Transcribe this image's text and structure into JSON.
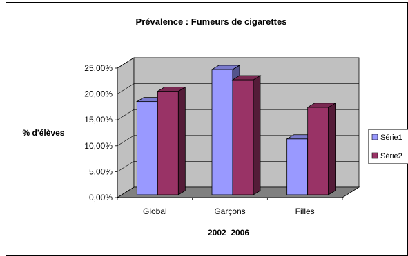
{
  "chart_data": {
    "type": "bar",
    "title": "Prévalence : Fumeurs de cigarettes",
    "xlabel": "2002  2006",
    "ylabel": "% d'élèves",
    "categories": [
      "Global",
      "Garçons",
      "Filles"
    ],
    "y_ticks": [
      "0,00%",
      "5,00%",
      "10,00%",
      "15,00%",
      "20,00%",
      "25,00%"
    ],
    "ylim": [
      0,
      25
    ],
    "series": [
      {
        "name": "Série1",
        "values": [
          18.0,
          24.2,
          10.8
        ],
        "color": "#9999ff"
      },
      {
        "name": "Série2",
        "values": [
          20.0,
          22.2,
          16.9
        ],
        "color": "#993366"
      }
    ],
    "legend_position": "right",
    "grid": true,
    "wall_color": "#c0c0c0",
    "floor_color": "#808080"
  }
}
